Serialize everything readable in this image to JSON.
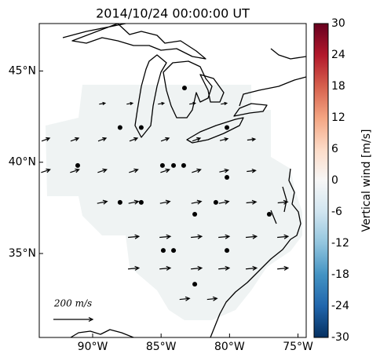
{
  "map": {
    "title": "2014/10/24 00:00:00 UT",
    "xlim": [
      -93.9,
      -74.4
    ],
    "ylim": [
      30.4,
      47.6
    ],
    "xticks": [
      {
        "value": -90,
        "label": "90°W"
      },
      {
        "value": -85,
        "label": "85°W"
      },
      {
        "value": -80,
        "label": "80°W"
      },
      {
        "value": -75,
        "label": "75°W"
      }
    ],
    "yticks": [
      {
        "value": 35,
        "label": "35°N"
      },
      {
        "value": 40,
        "label": "40°N"
      },
      {
        "value": 45,
        "label": "45°N"
      }
    ],
    "stations": [
      [
        -88.0,
        41.9
      ],
      [
        -86.45,
        41.9
      ],
      [
        -83.29,
        44.07
      ],
      [
        -80.19,
        41.9
      ],
      [
        -91.09,
        39.82
      ],
      [
        -84.9,
        39.82
      ],
      [
        -84.09,
        39.82
      ],
      [
        -83.35,
        39.82
      ],
      [
        -80.19,
        39.17
      ],
      [
        -88.0,
        37.8
      ],
      [
        -86.45,
        37.8
      ],
      [
        -82.54,
        37.15
      ],
      [
        -81.0,
        37.8
      ],
      [
        -77.1,
        37.15
      ],
      [
        -84.84,
        35.17
      ],
      [
        -84.09,
        35.17
      ],
      [
        -80.19,
        35.17
      ],
      [
        -82.54,
        33.32
      ]
    ],
    "vectors": [
      [
        -89.31,
        43.21,
        30,
        5
      ],
      [
        -87.3,
        43.21,
        30,
        5
      ],
      [
        -85.01,
        43.21,
        30,
        5
      ],
      [
        -82.72,
        43.21,
        30,
        5
      ],
      [
        -80.42,
        43.21,
        30,
        5
      ],
      [
        -93.44,
        41.24,
        40,
        15
      ],
      [
        -91.32,
        41.24,
        40,
        15
      ],
      [
        -89.31,
        41.24,
        40,
        15
      ],
      [
        -87.02,
        41.24,
        40,
        15
      ],
      [
        -84.72,
        41.24,
        40,
        15
      ],
      [
        -82.43,
        41.24,
        40,
        15
      ],
      [
        -80.42,
        41.24,
        40,
        10
      ],
      [
        -78.42,
        41.24,
        40,
        5
      ],
      [
        -93.44,
        39.52,
        45,
        15
      ],
      [
        -91.32,
        39.52,
        45,
        15
      ],
      [
        -89.31,
        39.52,
        45,
        15
      ],
      [
        -87.02,
        39.52,
        45,
        15
      ],
      [
        -84.72,
        39.52,
        45,
        15
      ],
      [
        -82.43,
        39.52,
        45,
        15
      ],
      [
        -80.42,
        39.52,
        45,
        10
      ],
      [
        -78.42,
        39.52,
        45,
        5
      ],
      [
        -89.31,
        37.8,
        50,
        10
      ],
      [
        -87.02,
        37.8,
        50,
        10
      ],
      [
        -84.72,
        37.8,
        50,
        10
      ],
      [
        -82.43,
        37.8,
        50,
        10
      ],
      [
        -80.42,
        37.8,
        50,
        10
      ],
      [
        -78.42,
        37.8,
        50,
        5
      ],
      [
        -76.12,
        37.8,
        50,
        5
      ],
      [
        -87.02,
        35.91,
        55,
        5
      ],
      [
        -84.72,
        35.91,
        55,
        5
      ],
      [
        -82.43,
        35.91,
        55,
        5
      ],
      [
        -80.42,
        35.91,
        55,
        5
      ],
      [
        -78.42,
        35.91,
        55,
        5
      ],
      [
        -76.12,
        35.91,
        55,
        5
      ],
      [
        -87.02,
        34.18,
        55,
        5
      ],
      [
        -84.72,
        34.18,
        55,
        5
      ],
      [
        -82.43,
        34.18,
        55,
        5
      ],
      [
        -80.42,
        34.18,
        55,
        5
      ],
      [
        -78.42,
        34.18,
        55,
        5
      ],
      [
        -76.12,
        34.18,
        55,
        5
      ],
      [
        -83.29,
        32.51,
        50,
        5
      ],
      [
        -81.28,
        32.51,
        50,
        5
      ]
    ],
    "quiver_key": {
      "value": 200,
      "label": "200 m/s"
    },
    "colorbar": {
      "label": "Vertical wind [m/s]",
      "lim": [
        -30,
        30
      ],
      "ticks": [
        -30,
        -24,
        -18,
        -12,
        -6,
        0,
        6,
        12,
        18,
        24,
        30
      ]
    }
  }
}
